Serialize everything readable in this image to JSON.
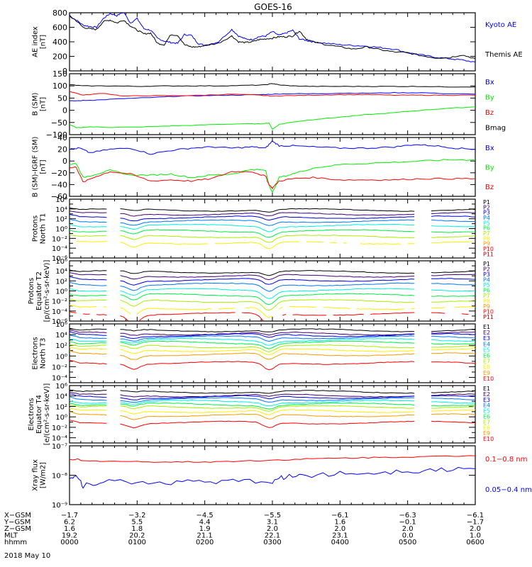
{
  "title": "GOES-16",
  "date_label": "2018 May 10",
  "colors": {
    "black": "#000000",
    "blue": "#0000ff",
    "green": "#00ee00",
    "red": "#ff0000",
    "dark_red": "#aa0000",
    "channels": [
      "#000000",
      "#440077",
      "#0000dd",
      "#0077ff",
      "#00eedd",
      "#00ee44",
      "#aaee00",
      "#ffee00",
      "#ff9900",
      "#ff0000",
      "#aa0000"
    ]
  },
  "ephemeris": {
    "row_labels": [
      "X-GSM",
      "Y-GSM",
      "Z-GSM",
      "MLT",
      "hhmm"
    ],
    "columns": [
      [
        "-1.7",
        "6.2",
        "1.6",
        "19.2",
        "0000"
      ],
      [
        "-3.2",
        "5.5",
        "1.8",
        "20.2",
        "0100"
      ],
      [
        "-4.5",
        "4.4",
        "1.9",
        "21.1",
        "0200"
      ],
      [
        "-5.5",
        "3.1",
        "2.0",
        "22.1",
        "0300"
      ],
      [
        "-6.1",
        "1.6",
        "2.0",
        "23.1",
        "0400"
      ],
      [
        "-6.3",
        "-0.1",
        "2.0",
        "0.0",
        "0500"
      ],
      [
        "-6.1",
        "-1.7",
        "2.0",
        "1.0",
        "0600"
      ]
    ]
  },
  "chart_data": [
    {
      "type": "line",
      "id": "ae",
      "ylabel": [
        "AE index",
        "[nT]"
      ],
      "ylim": [
        0,
        800
      ],
      "scale": "linear",
      "yticks": [
        "0",
        "200",
        "400",
        "600",
        "800"
      ],
      "x_hours": [
        0,
        6
      ],
      "series": [
        {
          "name": "Kyoto AE",
          "color": "blue",
          "x": [
            0,
            0.1,
            0.2,
            0.3,
            0.4,
            0.5,
            0.6,
            0.7,
            0.8,
            0.9,
            1.0,
            1.1,
            1.2,
            1.3,
            1.4,
            1.5,
            1.6,
            1.7,
            1.8,
            1.9,
            2.0,
            2.2,
            2.4,
            2.5,
            2.6,
            2.7,
            2.8,
            2.9,
            3.0,
            3.1,
            3.2,
            3.3,
            3.4,
            3.5,
            3.6,
            3.8,
            4.0,
            4.2,
            4.4,
            4.6,
            4.8,
            5.0,
            5.2,
            5.4,
            5.6,
            5.8,
            6.0
          ],
          "y": [
            750,
            700,
            630,
            610,
            600,
            720,
            790,
            760,
            810,
            660,
            720,
            580,
            560,
            450,
            410,
            390,
            380,
            500,
            490,
            380,
            350,
            400,
            570,
            480,
            440,
            430,
            470,
            480,
            540,
            490,
            520,
            560,
            440,
            420,
            400,
            380,
            360,
            350,
            340,
            320,
            300,
            250,
            220,
            190,
            170,
            150,
            120
          ]
        },
        {
          "name": "Themis AE",
          "color": "black",
          "x": [
            0,
            0.1,
            0.2,
            0.3,
            0.4,
            0.5,
            0.6,
            0.7,
            0.8,
            0.9,
            1.0,
            1.1,
            1.2,
            1.3,
            1.4,
            1.5,
            1.6,
            1.7,
            1.8,
            1.9,
            2.0,
            2.2,
            2.4,
            2.5,
            2.6,
            2.7,
            2.8,
            2.9,
            3.0,
            3.1,
            3.2,
            3.3,
            3.4,
            3.5,
            3.6,
            3.8,
            4.0,
            4.2,
            4.4,
            4.6,
            4.8,
            5.0,
            5.2,
            5.4,
            5.6,
            5.8,
            6.0
          ],
          "y": [
            760,
            690,
            600,
            580,
            570,
            680,
            700,
            660,
            700,
            620,
            560,
            510,
            520,
            380,
            360,
            500,
            490,
            360,
            330,
            330,
            350,
            380,
            480,
            400,
            390,
            400,
            430,
            440,
            450,
            470,
            470,
            480,
            550,
            440,
            400,
            360,
            330,
            300,
            330,
            290,
            260,
            250,
            210,
            180,
            180,
            220,
            170
          ]
        }
      ],
      "legend": [
        "Kyoto AE",
        "Themis AE"
      ]
    },
    {
      "type": "line",
      "id": "bsm",
      "ylabel": [
        "B (SM)",
        "[nT]"
      ],
      "ylim": [
        -100,
        150
      ],
      "scale": "linear",
      "yticks": [
        "-100",
        "-50",
        "0",
        "50",
        "100",
        "150"
      ],
      "series": [
        {
          "name": "Bx",
          "color": "blue",
          "x": [
            0,
            0.2,
            0.4,
            0.8,
            1.2,
            1.6,
            2.0,
            2.4,
            2.8,
            3.0,
            3.2,
            3.6,
            4.0,
            4.4,
            4.8,
            5.2,
            5.6,
            6.0
          ],
          "y": [
            38,
            40,
            42,
            48,
            52,
            58,
            60,
            62,
            64,
            66,
            68,
            68,
            70,
            70,
            72,
            72,
            68,
            66
          ]
        },
        {
          "name": "By",
          "color": "green",
          "x": [
            0,
            0.1,
            0.3,
            0.6,
            1.0,
            1.4,
            1.8,
            2.2,
            2.6,
            2.8,
            2.95,
            3.0,
            3.1,
            3.3,
            3.6,
            4.0,
            4.4,
            4.8,
            5.2,
            5.6,
            6.0
          ],
          "y": [
            -58,
            -72,
            -68,
            -70,
            -69,
            -65,
            -62,
            -58,
            -55,
            -56,
            -52,
            -78,
            -58,
            -48,
            -38,
            -28,
            -18,
            -10,
            0,
            8,
            14
          ]
        },
        {
          "name": "Bz",
          "color": "red",
          "x": [
            0,
            0.2,
            0.5,
            0.8,
            1.2,
            1.6,
            2.0,
            2.4,
            2.8,
            3.0,
            3.2,
            3.6,
            4.0,
            4.4,
            4.8,
            5.2,
            5.6,
            6.0
          ],
          "y": [
            78,
            62,
            70,
            58,
            60,
            60,
            62,
            66,
            62,
            58,
            60,
            62,
            64,
            64,
            62,
            62,
            62,
            62
          ]
        },
        {
          "name": "Bmag",
          "color": "black",
          "x": [
            0,
            0.2,
            0.6,
            1.0,
            1.4,
            1.8,
            2.2,
            2.6,
            2.9,
            3.0,
            3.1,
            3.3,
            3.6,
            4.0,
            4.4,
            4.8,
            5.2,
            5.6,
            6.0
          ],
          "y": [
            105,
            100,
            100,
            98,
            100,
            100,
            100,
            102,
            104,
            110,
            104,
            100,
            98,
            98,
            98,
            98,
            98,
            96,
            96
          ]
        }
      ],
      "legend": [
        "Bx",
        "By",
        "Bz",
        "Bmag"
      ]
    },
    {
      "type": "line",
      "id": "bigrf",
      "ylabel": [
        "B (SM)-IGRF (SM)",
        "[nT]"
      ],
      "ylim": [
        -60,
        40
      ],
      "scale": "linear",
      "yticks": [
        "-60",
        "-40",
        "-20",
        "0",
        "20",
        "40"
      ],
      "series": [
        {
          "name": "Bx",
          "color": "blue",
          "x": [
            0,
            0.15,
            0.3,
            0.6,
            0.9,
            1.2,
            1.5,
            1.8,
            2.1,
            2.4,
            2.7,
            2.9,
            3.0,
            3.1,
            3.3,
            3.6,
            4.0,
            4.4,
            4.8,
            5.1,
            5.4,
            5.7,
            6.0
          ],
          "y": [
            20,
            22,
            14,
            20,
            22,
            12,
            18,
            22,
            24,
            22,
            24,
            22,
            34,
            26,
            26,
            24,
            22,
            22,
            24,
            28,
            26,
            22,
            20
          ]
        },
        {
          "name": "By",
          "color": "green",
          "x": [
            0,
            0.1,
            0.2,
            0.4,
            0.6,
            0.9,
            1.2,
            1.5,
            1.8,
            2.1,
            2.4,
            2.7,
            2.9,
            2.95,
            3.0,
            3.1,
            3.3,
            3.6,
            4.0,
            4.4,
            4.8,
            5.2,
            5.6,
            6.0
          ],
          "y": [
            -6,
            -4,
            -28,
            -22,
            -16,
            -24,
            -24,
            -22,
            -28,
            -24,
            -22,
            -14,
            -16,
            -40,
            -54,
            -28,
            -22,
            -12,
            -6,
            -4,
            -2,
            0,
            2,
            2
          ]
        },
        {
          "name": "Bz",
          "color": "red",
          "x": [
            0,
            0.1,
            0.2,
            0.4,
            0.6,
            0.9,
            1.2,
            1.5,
            1.8,
            2.1,
            2.4,
            2.7,
            2.9,
            2.95,
            3.0,
            3.1,
            3.3,
            3.6,
            4.0,
            4.4,
            4.8,
            5.2,
            5.6,
            6.0
          ],
          "y": [
            -12,
            -10,
            -36,
            -26,
            -18,
            -22,
            -34,
            -32,
            -34,
            -30,
            -18,
            -18,
            -26,
            -40,
            -46,
            -34,
            -30,
            -28,
            -32,
            -32,
            -32,
            -30,
            -30,
            -30
          ]
        }
      ],
      "legend": [
        "Bx",
        "By",
        "Bz"
      ]
    },
    {
      "type": "line",
      "id": "protons_t1",
      "ylabel": [
        "Protons",
        "North T1"
      ],
      "ylim_exp": [
        -6,
        6
      ],
      "scale": "log",
      "ytick_exps": [
        -6,
        -4,
        -2,
        0,
        2,
        4,
        6
      ],
      "legend": [
        "P1",
        "P2",
        "P3",
        "P4",
        "P5",
        "P6",
        "P7",
        "P8",
        "P9",
        "P10",
        "P11"
      ],
      "base_exps": [
        3.8,
        3.0,
        2.3,
        1.5,
        0.6,
        -0.5,
        -1.6,
        -2.9,
        null,
        null,
        null
      ],
      "dip_depth": 1.3
    },
    {
      "type": "line",
      "id": "protons_t2",
      "ylabel": [
        "Protons",
        "Equator T2",
        "[p/(cm²-s-sr-keV)]"
      ],
      "ylim_exp": [
        -6,
        6
      ],
      "scale": "log",
      "ytick_exps": [
        -6,
        -4,
        -2,
        0,
        2,
        4,
        6
      ],
      "legend": [
        "P1",
        "P2",
        "P3",
        "P4",
        "P5",
        "P6",
        "P7",
        "P8",
        "P9",
        "P10",
        "P11"
      ],
      "base_exps": [
        3.8,
        3.0,
        2.2,
        1.3,
        0.2,
        -0.8,
        -2.0,
        -3.4,
        null,
        -4.6,
        null
      ],
      "dip_depth": 2.0
    },
    {
      "type": "line",
      "id": "electrons_t3",
      "ylabel": [
        "Electrons",
        "North T3"
      ],
      "ylim_exp": [
        -5,
        6
      ],
      "scale": "log",
      "ytick_exps": [
        -4,
        -2,
        0,
        2,
        4,
        6
      ],
      "legend": [
        "E1",
        "E2",
        "E3",
        "E4",
        "E5",
        "E6",
        "E7",
        "E8",
        "E9",
        "E10"
      ],
      "base_exps": [
        4.8,
        4.2,
        3.9,
        3.5,
        3.0,
        2.5,
        1.8,
        1.1,
        0.3,
        -1.3
      ],
      "dip_depth": 1.0
    },
    {
      "type": "line",
      "id": "electrons_t4",
      "ylabel": [
        "Electrons",
        "Equator T4",
        "[e/(cm²-s-sr-keV)]"
      ],
      "ylim_exp": [
        -5,
        6
      ],
      "scale": "log",
      "ytick_exps": [
        -4,
        -2,
        0,
        2,
        4,
        6
      ],
      "legend": [
        "E1",
        "E2",
        "E3",
        "E4",
        "E5",
        "E6",
        "E7",
        "E8",
        "E9",
        "E10"
      ],
      "base_exps": [
        4.8,
        4.1,
        3.8,
        3.4,
        2.9,
        2.4,
        1.9,
        1.1,
        0.3,
        -1.1
      ],
      "dip_depth": 0.8
    },
    {
      "type": "line",
      "id": "xray",
      "ylabel": [
        "Xray flux",
        "[W/m2]"
      ],
      "ylim_exp": [
        -9,
        -7
      ],
      "scale": "log",
      "ytick_exps": [
        -9,
        -8,
        -7
      ],
      "legend": [
        "0.1-0.8 nm",
        "0.05-0.4 nm"
      ],
      "series": [
        {
          "name": "0.1-0.8 nm",
          "color": "red",
          "x": [
            0,
            0.1,
            0.2,
            0.5,
            1.0,
            1.5,
            2.0,
            2.5,
            3.0,
            3.5,
            4.0,
            4.5,
            5.0,
            5.5,
            6.0
          ],
          "y_exp": [
            -7.48,
            -7.45,
            -7.52,
            -7.52,
            -7.54,
            -7.55,
            -7.55,
            -7.52,
            -7.49,
            -7.45,
            -7.42,
            -7.4,
            -7.38,
            -7.36,
            -7.34
          ]
        },
        {
          "name": "0.05-0.4 nm",
          "color": "blue",
          "x": [
            0,
            0.1,
            0.2,
            0.5,
            1.0,
            1.5,
            2.0,
            2.5,
            3.0,
            3.2,
            3.5,
            4.0,
            4.5,
            5.0,
            5.5,
            6.0
          ],
          "y_exp": [
            -8.05,
            -8.0,
            -8.35,
            -8.2,
            -8.25,
            -8.25,
            -8.2,
            -8.22,
            -8.2,
            -8.05,
            -8.0,
            -7.95,
            -7.9,
            -7.85,
            -7.8,
            -7.78
          ]
        }
      ]
    }
  ]
}
